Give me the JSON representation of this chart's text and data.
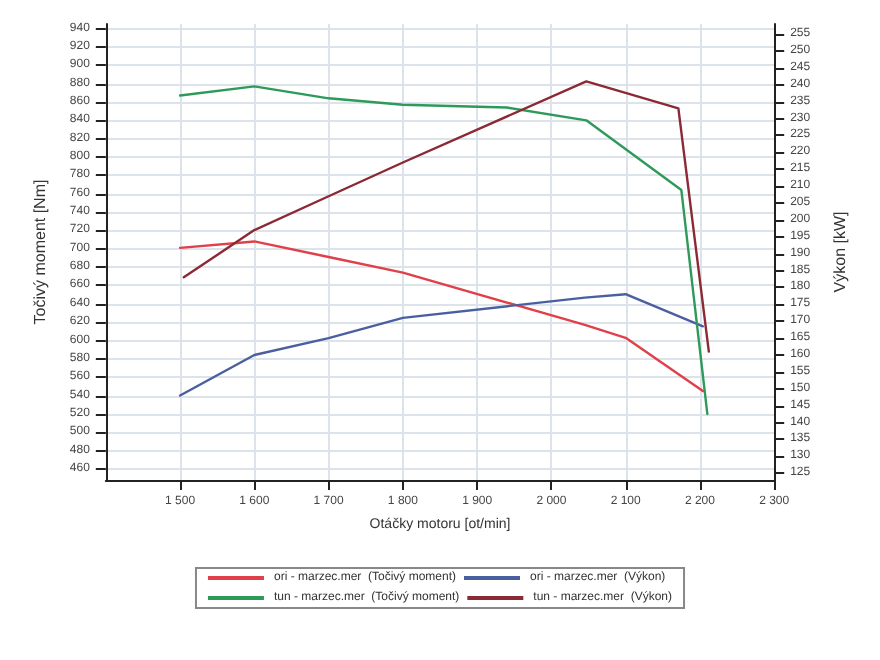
{
  "chart_data": {
    "type": "line",
    "xlabel": "Otáčky motoru [ot/min]",
    "ylabel": "Točivý moment [Nm]",
    "y2label": "Výkon [kW]",
    "xlim": [
      1400,
      2300
    ],
    "xticks": [
      {
        "value": 1500,
        "label": "1 500"
      },
      {
        "value": 1600,
        "label": "1 600"
      },
      {
        "value": 1700,
        "label": "1 700"
      },
      {
        "value": 1800,
        "label": "1 800"
      },
      {
        "value": 1900,
        "label": "1 900"
      },
      {
        "value": 2000,
        "label": "2 000"
      },
      {
        "value": 2100,
        "label": "2 100"
      },
      {
        "value": 2200,
        "label": "2 200"
      },
      {
        "value": 2300,
        "label": "2 300"
      }
    ],
    "ylim": [
      448,
      945
    ],
    "yticks": [
      460,
      480,
      500,
      520,
      540,
      560,
      580,
      600,
      620,
      640,
      660,
      680,
      700,
      720,
      740,
      760,
      780,
      800,
      820,
      840,
      860,
      880,
      900,
      920,
      940
    ],
    "y2lim": [
      123,
      258
    ],
    "y2ticks": [
      125,
      130,
      135,
      140,
      145,
      150,
      155,
      160,
      165,
      170,
      175,
      180,
      185,
      190,
      195,
      200,
      205,
      210,
      215,
      220,
      225,
      230,
      235,
      240,
      245,
      250,
      255
    ],
    "grid": true,
    "legend": "bottom",
    "marker": "none",
    "line_style": "solid",
    "series": [
      {
        "name": "ori - marzec.mer  (Točivý moment)",
        "color": "#e0404a",
        "x": [
          1500,
          1600,
          1700,
          1800,
          2045,
          2100,
          2204
        ],
        "values": [
          701,
          708,
          691,
          674,
          617,
          603,
          545
        ]
      },
      {
        "name": "ori - marzec.mer  (Výkon)",
        "color": "#4a5fa0",
        "axis": "y2",
        "x": [
          1500,
          1600,
          1700,
          1800,
          2045,
          2100,
          2204
        ],
        "values": [
          148,
          160,
          165,
          171,
          177,
          178,
          168.5
        ]
      },
      {
        "name": "tun - marzec.mer  (Točivý moment)",
        "color": "#2e9a5a",
        "x": [
          1500,
          1600,
          1700,
          1800,
          1940,
          2047,
          2175,
          2210
        ],
        "values": [
          867,
          877,
          864,
          857,
          854,
          840,
          764,
          520
        ]
      },
      {
        "name": "tun - marzec.mer  (Výkon)",
        "color": "#8b2a35",
        "axis": "y2",
        "x": [
          1505,
          1600,
          1700,
          1800,
          2047,
          2171,
          2212
        ],
        "values": [
          183,
          197,
          207,
          217,
          241,
          233,
          161
        ]
      }
    ]
  }
}
